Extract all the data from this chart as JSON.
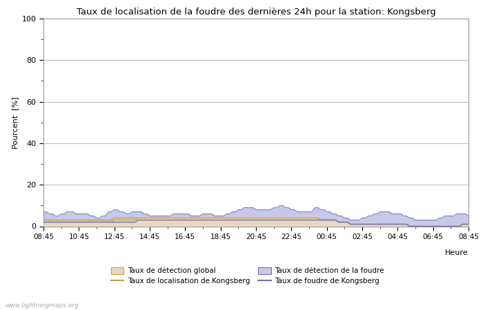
{
  "title": "Taux de localisation de la foudre des dernières 24h pour la station: Kongsberg",
  "xlabel": "Heure",
  "ylabel": "Pourcent  [%]",
  "ylim": [
    0,
    100
  ],
  "yticks": [
    0,
    20,
    40,
    60,
    80,
    100
  ],
  "yticks_minor": [
    10,
    30,
    50,
    70,
    90
  ],
  "x_labels": [
    "08:45",
    "10:45",
    "12:45",
    "14:45",
    "16:45",
    "18:45",
    "20:45",
    "22:45",
    "00:45",
    "02:45",
    "04:45",
    "06:45",
    "08:45"
  ],
  "watermark": "www.lightningmaps.org",
  "background_color": "#ffffff",
  "plot_bg_color": "#ffffff",
  "grid_color": "#bbbbbb",
  "fill_detection_color": "#c8c8e8",
  "fill_detection_line_color": "#7070b0",
  "fill_global_color": "#e8d8c0",
  "fill_global_line_color": "#c8a040",
  "n_points": 145,
  "detection_data": [
    7,
    7,
    6,
    6,
    5,
    5,
    6,
    6,
    7,
    7,
    7,
    6,
    6,
    6,
    6,
    6,
    5,
    5,
    4,
    4,
    5,
    5,
    7,
    7,
    8,
    8,
    7,
    7,
    6,
    6,
    7,
    7,
    7,
    7,
    6,
    6,
    5,
    5,
    5,
    5,
    5,
    5,
    5,
    5,
    6,
    6,
    6,
    6,
    6,
    6,
    5,
    5,
    5,
    5,
    6,
    6,
    6,
    6,
    5,
    5,
    5,
    5,
    6,
    6,
    7,
    7,
    8,
    8,
    9,
    9,
    9,
    9,
    8,
    8,
    8,
    8,
    8,
    8,
    9,
    9,
    10,
    10,
    9,
    9,
    8,
    8,
    7,
    7,
    7,
    7,
    7,
    7,
    9,
    9,
    8,
    8,
    7,
    7,
    6,
    6,
    5,
    5,
    4,
    4,
    3,
    3,
    3,
    3,
    4,
    4,
    5,
    5,
    6,
    6,
    7,
    7,
    7,
    7,
    6,
    6,
    6,
    6,
    5,
    5,
    4,
    4,
    3,
    3,
    3,
    3,
    3,
    3,
    3,
    3,
    4,
    4,
    5,
    5,
    5,
    5,
    6,
    6,
    6,
    6,
    5
  ],
  "global_data": [
    2,
    2,
    2,
    2,
    2,
    2,
    2,
    2,
    2,
    2,
    2,
    2,
    2,
    2,
    2,
    2,
    2,
    2,
    2,
    2,
    2,
    2,
    2,
    2,
    3,
    3,
    3,
    3,
    3,
    3,
    3,
    3,
    4,
    4,
    4,
    4,
    4,
    4,
    4,
    4,
    4,
    4,
    4,
    4,
    4,
    4,
    4,
    4,
    4,
    4,
    4,
    4,
    4,
    4,
    4,
    4,
    4,
    4,
    4,
    4,
    4,
    4,
    4,
    4,
    4,
    4,
    4,
    4,
    4,
    4,
    4,
    4,
    4,
    4,
    4,
    4,
    4,
    4,
    4,
    4,
    4,
    4,
    4,
    4,
    4,
    4,
    4,
    4,
    4,
    4,
    4,
    4,
    4,
    4,
    3,
    3,
    3,
    3,
    3,
    3,
    2,
    2,
    2,
    2,
    1,
    1,
    1,
    1,
    1,
    1,
    1,
    1,
    1,
    1,
    1,
    1,
    1,
    1,
    1,
    1,
    1,
    1,
    1,
    1,
    0,
    0,
    0,
    0,
    0,
    0,
    0,
    0,
    0,
    0,
    0,
    0,
    0,
    0,
    0,
    0,
    0,
    0,
    1,
    1,
    1
  ],
  "localisation_data": [
    3,
    3,
    3,
    3,
    3,
    3,
    3,
    3,
    3,
    3,
    3,
    3,
    3,
    3,
    3,
    3,
    3,
    3,
    3,
    3,
    3,
    3,
    3,
    3,
    4,
    4,
    4,
    4,
    4,
    4,
    4,
    4,
    4,
    4,
    4,
    4,
    4,
    4,
    4,
    4,
    4,
    4,
    4,
    4,
    4,
    4,
    4,
    4,
    4,
    4,
    4,
    4,
    4,
    4,
    4,
    4,
    4,
    4,
    4,
    4,
    4,
    4,
    4,
    4,
    4,
    4,
    4,
    4,
    4,
    4,
    4,
    4,
    4,
    4,
    4,
    4,
    4,
    4,
    4,
    4,
    4,
    4,
    4,
    4,
    4,
    4,
    4,
    4,
    4,
    4,
    4,
    4,
    4,
    4,
    3,
    3,
    3,
    3,
    3,
    3,
    2,
    2,
    2,
    2,
    1,
    1,
    1,
    1,
    1,
    1,
    1,
    1,
    1,
    1,
    1,
    1,
    1,
    1,
    1,
    1,
    1,
    1,
    1,
    1,
    0,
    0,
    0,
    0,
    0,
    0,
    0,
    0,
    0,
    0,
    0,
    0,
    0,
    0,
    0,
    0,
    0,
    0,
    1,
    1,
    1
  ],
  "foudre_data": [
    2,
    2,
    2,
    2,
    2,
    2,
    2,
    2,
    2,
    2,
    2,
    2,
    2,
    2,
    2,
    2,
    2,
    2,
    2,
    2,
    2,
    2,
    2,
    2,
    2,
    2,
    2,
    2,
    2,
    2,
    2,
    2,
    3,
    3,
    3,
    3,
    3,
    3,
    3,
    3,
    3,
    3,
    3,
    3,
    3,
    3,
    3,
    3,
    3,
    3,
    3,
    3,
    3,
    3,
    3,
    3,
    3,
    3,
    3,
    3,
    3,
    3,
    3,
    3,
    3,
    3,
    3,
    3,
    3,
    3,
    3,
    3,
    3,
    3,
    3,
    3,
    3,
    3,
    3,
    3,
    3,
    3,
    3,
    3,
    3,
    3,
    3,
    3,
    3,
    3,
    3,
    3,
    3,
    3,
    3,
    3,
    3,
    3,
    3,
    3,
    2,
    2,
    2,
    2,
    1,
    1,
    1,
    1,
    1,
    1,
    1,
    1,
    1,
    1,
    1,
    1,
    1,
    1,
    1,
    1,
    1,
    1,
    1,
    1,
    0,
    0,
    0,
    0,
    0,
    0,
    0,
    0,
    0,
    0,
    0,
    0,
    0,
    0,
    0,
    0,
    0,
    0,
    1,
    1,
    1
  ]
}
